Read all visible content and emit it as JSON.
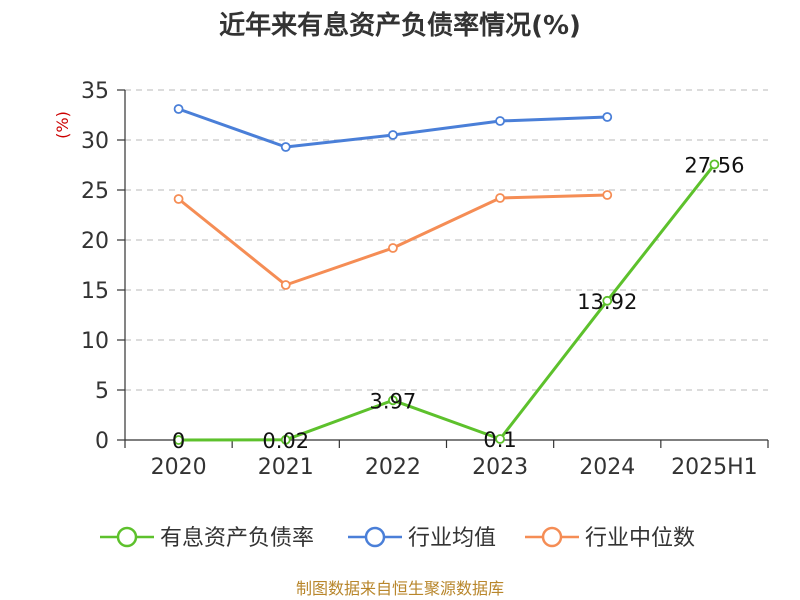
{
  "chart_data": {
    "type": "line",
    "title": "近年来有息资产负债率情况(%)",
    "ylabel": "(%)",
    "categories": [
      "2020",
      "2021",
      "2022",
      "2023",
      "2024",
      "2025H1"
    ],
    "ylim": [
      0,
      35
    ],
    "yticks": [
      "0",
      "5",
      "10",
      "15",
      "20",
      "25",
      "30",
      "35"
    ],
    "grid": true,
    "legend_position": "bottom",
    "series": [
      {
        "name": "有息资产负债率",
        "color": "#5dc12c",
        "values": [
          0,
          0.02,
          3.97,
          0.1,
          13.92,
          27.56
        ],
        "labels": [
          "0",
          "0.02",
          "3.97",
          "0.1",
          "13.92",
          "27.56"
        ]
      },
      {
        "name": "行业均值",
        "color": "#4a7fd8",
        "values": [
          33.1,
          29.3,
          30.5,
          31.9,
          32.3,
          null
        ]
      },
      {
        "name": "行业中位数",
        "color": "#f58d55",
        "values": [
          24.1,
          15.5,
          19.2,
          24.2,
          24.5,
          null
        ]
      }
    ]
  },
  "source": "制图数据来自恒生聚源数据库"
}
